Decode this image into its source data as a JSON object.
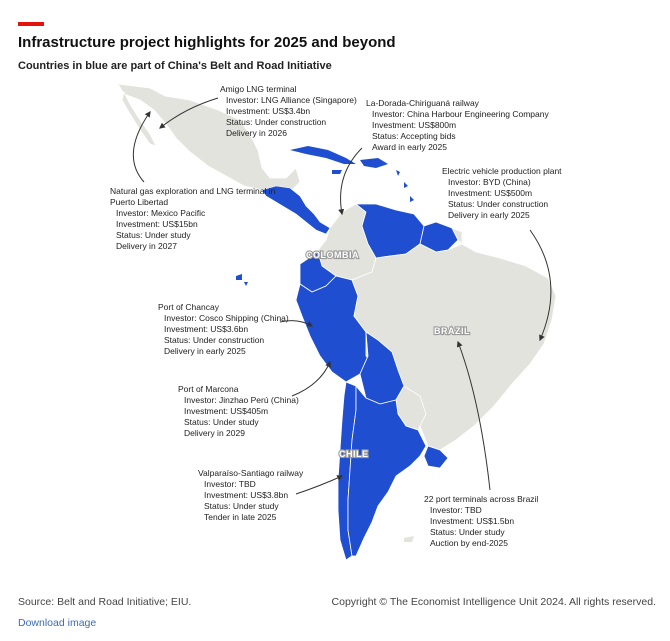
{
  "header": {
    "title": "Infrastructure project highlights for 2025 and beyond",
    "subtitle": "Countries in blue are part of China's Belt and Road Initiative"
  },
  "colors": {
    "bri_blue": "#1f4fd0",
    "land_grey": "#e3e3de",
    "border": "#ffffff",
    "accent": "#e3120b",
    "link": "#3b6bb5"
  },
  "country_labels": {
    "colombia": "COLOMBIA",
    "brazil": "BRAZIL",
    "chile": "CHILE"
  },
  "annotations": {
    "amigo": {
      "name": "Amigo LNG terminal",
      "investor": "Investor: LNG Alliance (Singapore)",
      "investment": "Investment: US$3.4bn",
      "status": "Status: Under construction",
      "timeline": "Delivery in 2026"
    },
    "libertad": {
      "name_1": "Natural gas exploration and LNG terminal in",
      "name_2": "Puerto Libertad",
      "investor": "Investor: Mexico Pacific",
      "investment": "Investment: US$15bn",
      "status": "Status: Under study",
      "timeline": "Delivery in 2027"
    },
    "railway_co": {
      "name": "La-Dorada-Chiriguaná railway",
      "investor": "Investor: China Harbour Engineering Company",
      "investment": "Investment: US$800m",
      "status": "Status: Accepting bids",
      "timeline": "Award in early 2025"
    },
    "ev": {
      "name": "Electric vehicle production plant",
      "investor": "Investor: BYD (China)",
      "investment": "Investment: US$500m",
      "status": "Status: Under construction",
      "timeline": "Delivery in early 2025"
    },
    "chancay": {
      "name": "Port of Chancay",
      "investor": "Investor: Cosco Shipping (China)",
      "investment": "Investment: US$3.6bn",
      "status": "Status: Under construction",
      "timeline": "Delivery in early 2025"
    },
    "marcona": {
      "name": "Port of Marcona",
      "investor": "Investor: Jinzhao Perú (China)",
      "investment": "Investment: US$405m",
      "status": "Status: Under study",
      "timeline": "Delivery in 2029"
    },
    "valparaiso": {
      "name": "Valparaíso-Santiago railway",
      "investor": "Investor: TBD",
      "investment": "Investment: US$3.8bn",
      "status": "Status: Under study",
      "timeline": "Tender in late 2025"
    },
    "brazil_ports": {
      "name": "22 port terminals across Brazil",
      "investor": "Investor: TBD",
      "investment": "Investment: US$1.5bn",
      "status": "Status: Under study",
      "timeline": "Auction by end-2025"
    }
  },
  "footer": {
    "source": "Source: Belt and Road Initiative; EIU.",
    "copyright": "Copyright © The Economist Intelligence Unit 2024. All rights reserved.",
    "download": "Download image"
  }
}
